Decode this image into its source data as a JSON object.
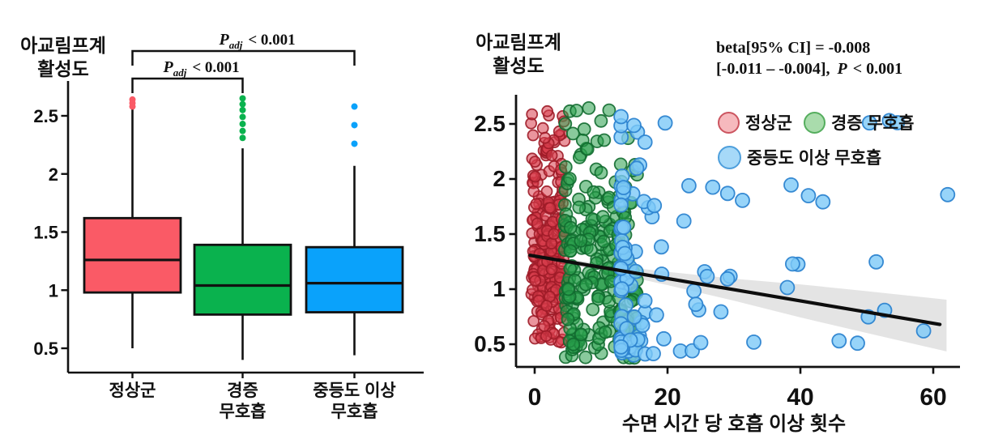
{
  "chart_data": [
    {
      "type": "box",
      "title": "아교림프계\n활성도",
      "ylabel": "아교림프계 활성도",
      "yticks": [
        2.5,
        2,
        1.5,
        1,
        0.5
      ],
      "ylim": [
        0.28,
        2.75
      ],
      "grid": false,
      "categories": [
        "정상군",
        "경증 무호흡",
        "중등도 이상 무호흡"
      ],
      "category_labels": [
        "정상군",
        "경증\n무호흡",
        "중등도 이상\n무호흡"
      ],
      "boxes": [
        {
          "group": "정상군",
          "color": "#FA5A66",
          "q1": 0.98,
          "median": 1.26,
          "q3": 1.62,
          "whisker_low": 0.5,
          "whisker_high": 2.56,
          "outliers": [
            2.58,
            2.61,
            2.64
          ]
        },
        {
          "group": "경증 무호흡",
          "color": "#0AB24E",
          "q1": 0.79,
          "median": 1.04,
          "q3": 1.39,
          "whisker_low": 0.4,
          "whisker_high": 2.22,
          "outliers": [
            2.31,
            2.37,
            2.43,
            2.49,
            2.55,
            2.6,
            2.65
          ]
        },
        {
          "group": "중등도 이상 무호흡",
          "color": "#0AA2FB",
          "q1": 0.81,
          "median": 1.06,
          "q3": 1.37,
          "whisker_low": 0.44,
          "whisker_high": 2.07,
          "outliers": [
            2.26,
            2.42,
            2.58
          ]
        }
      ],
      "significance": [
        {
          "groups": [
            0,
            1
          ],
          "p_label": "P",
          "p_sub": "adj",
          "p_rest": "<  0.001"
        },
        {
          "groups": [
            0,
            2
          ],
          "p_label": "P",
          "p_sub": "adj",
          "p_rest": "<  0.001"
        }
      ],
      "line_color": "#111111"
    },
    {
      "type": "scatter",
      "title": "아교림프계\n활성도",
      "ylabel": "아교림프계 활성도",
      "xlabel": "수면 시간 당 호흡 이상 횟수",
      "xticks": [
        0,
        20,
        40,
        60
      ],
      "yticks": [
        2.5,
        2,
        1.5,
        1,
        0.5
      ],
      "xlim": [
        -1.5,
        64
      ],
      "ylim": [
        0.28,
        2.75
      ],
      "grid": false,
      "legend_position": "top-right-inside",
      "annotation": {
        "line1": "beta[95% CI] = -0.008",
        "line2_prefix": "[-0.011 – -0.004],",
        "p_label": "P",
        "line2_rest": "<  0.001"
      },
      "legend": [
        {
          "label": "정상군",
          "fill": "#F6B9BD",
          "stroke": "#CC5560",
          "size": 27
        },
        {
          "label": "경증 무호흡",
          "fill": "#A9DCAC",
          "stroke": "#55AE5E",
          "size": 27
        },
        {
          "label": "중등도 이상 무호흡",
          "fill": "#A6D9F8",
          "stroke": "#4E9FDC",
          "size": 29
        }
      ],
      "regression": {
        "x1": 0,
        "y1": 1.3,
        "x2": 61,
        "y2": 0.68,
        "color": "#0d0d0d"
      },
      "ci_band": {
        "color": "#d9d9d9",
        "x": [
          0,
          10,
          15,
          20,
          30,
          40,
          50,
          62
        ],
        "half_width": [
          0.025,
          0.03,
          0.045,
          0.06,
          0.1,
          0.15,
          0.19,
          0.235
        ]
      },
      "groups": [
        {
          "name": "정상군",
          "dn": "scatter-points-normal",
          "n": 260,
          "fill": "rgba(217,62,76,0.55)",
          "stroke": "rgba(158,28,40,0.9)",
          "r": 6.5,
          "x_min": -0.6,
          "x_max": 4.5,
          "x_pow": 1,
          "uniform_frac": 0.35,
          "y_center": 1.25,
          "y_sd": 0.5,
          "y_min": 0.45,
          "y_max": 2.62
        },
        {
          "name": "경증 무호흡",
          "dn": "scatter-points-mild",
          "n": 235,
          "fill": "rgba(40,158,75,0.55)",
          "stroke": "rgba(18,108,48,0.9)",
          "r": 7.5,
          "x_min": 4.5,
          "x_max": 15.5,
          "x_pow": 1.3,
          "uniform_frac": 0.35,
          "y_center": 1.05,
          "y_sd": 0.5,
          "y_min": 0.36,
          "y_max": 2.66
        },
        {
          "name": "중등도 이상 무호흡",
          "dn": "scatter-points-moderate",
          "n": 112,
          "fill": "rgba(125,201,248,0.8)",
          "stroke": "rgba(45,132,208,0.95)",
          "r": 8.5,
          "x_min": 13,
          "x_max": 63,
          "x_pow": 4,
          "uniform_frac": 0.3,
          "y_center": 1.05,
          "y_sd": 0.55,
          "y_min": 0.4,
          "y_max": 2.6
        }
      ],
      "seed": 977
    }
  ]
}
